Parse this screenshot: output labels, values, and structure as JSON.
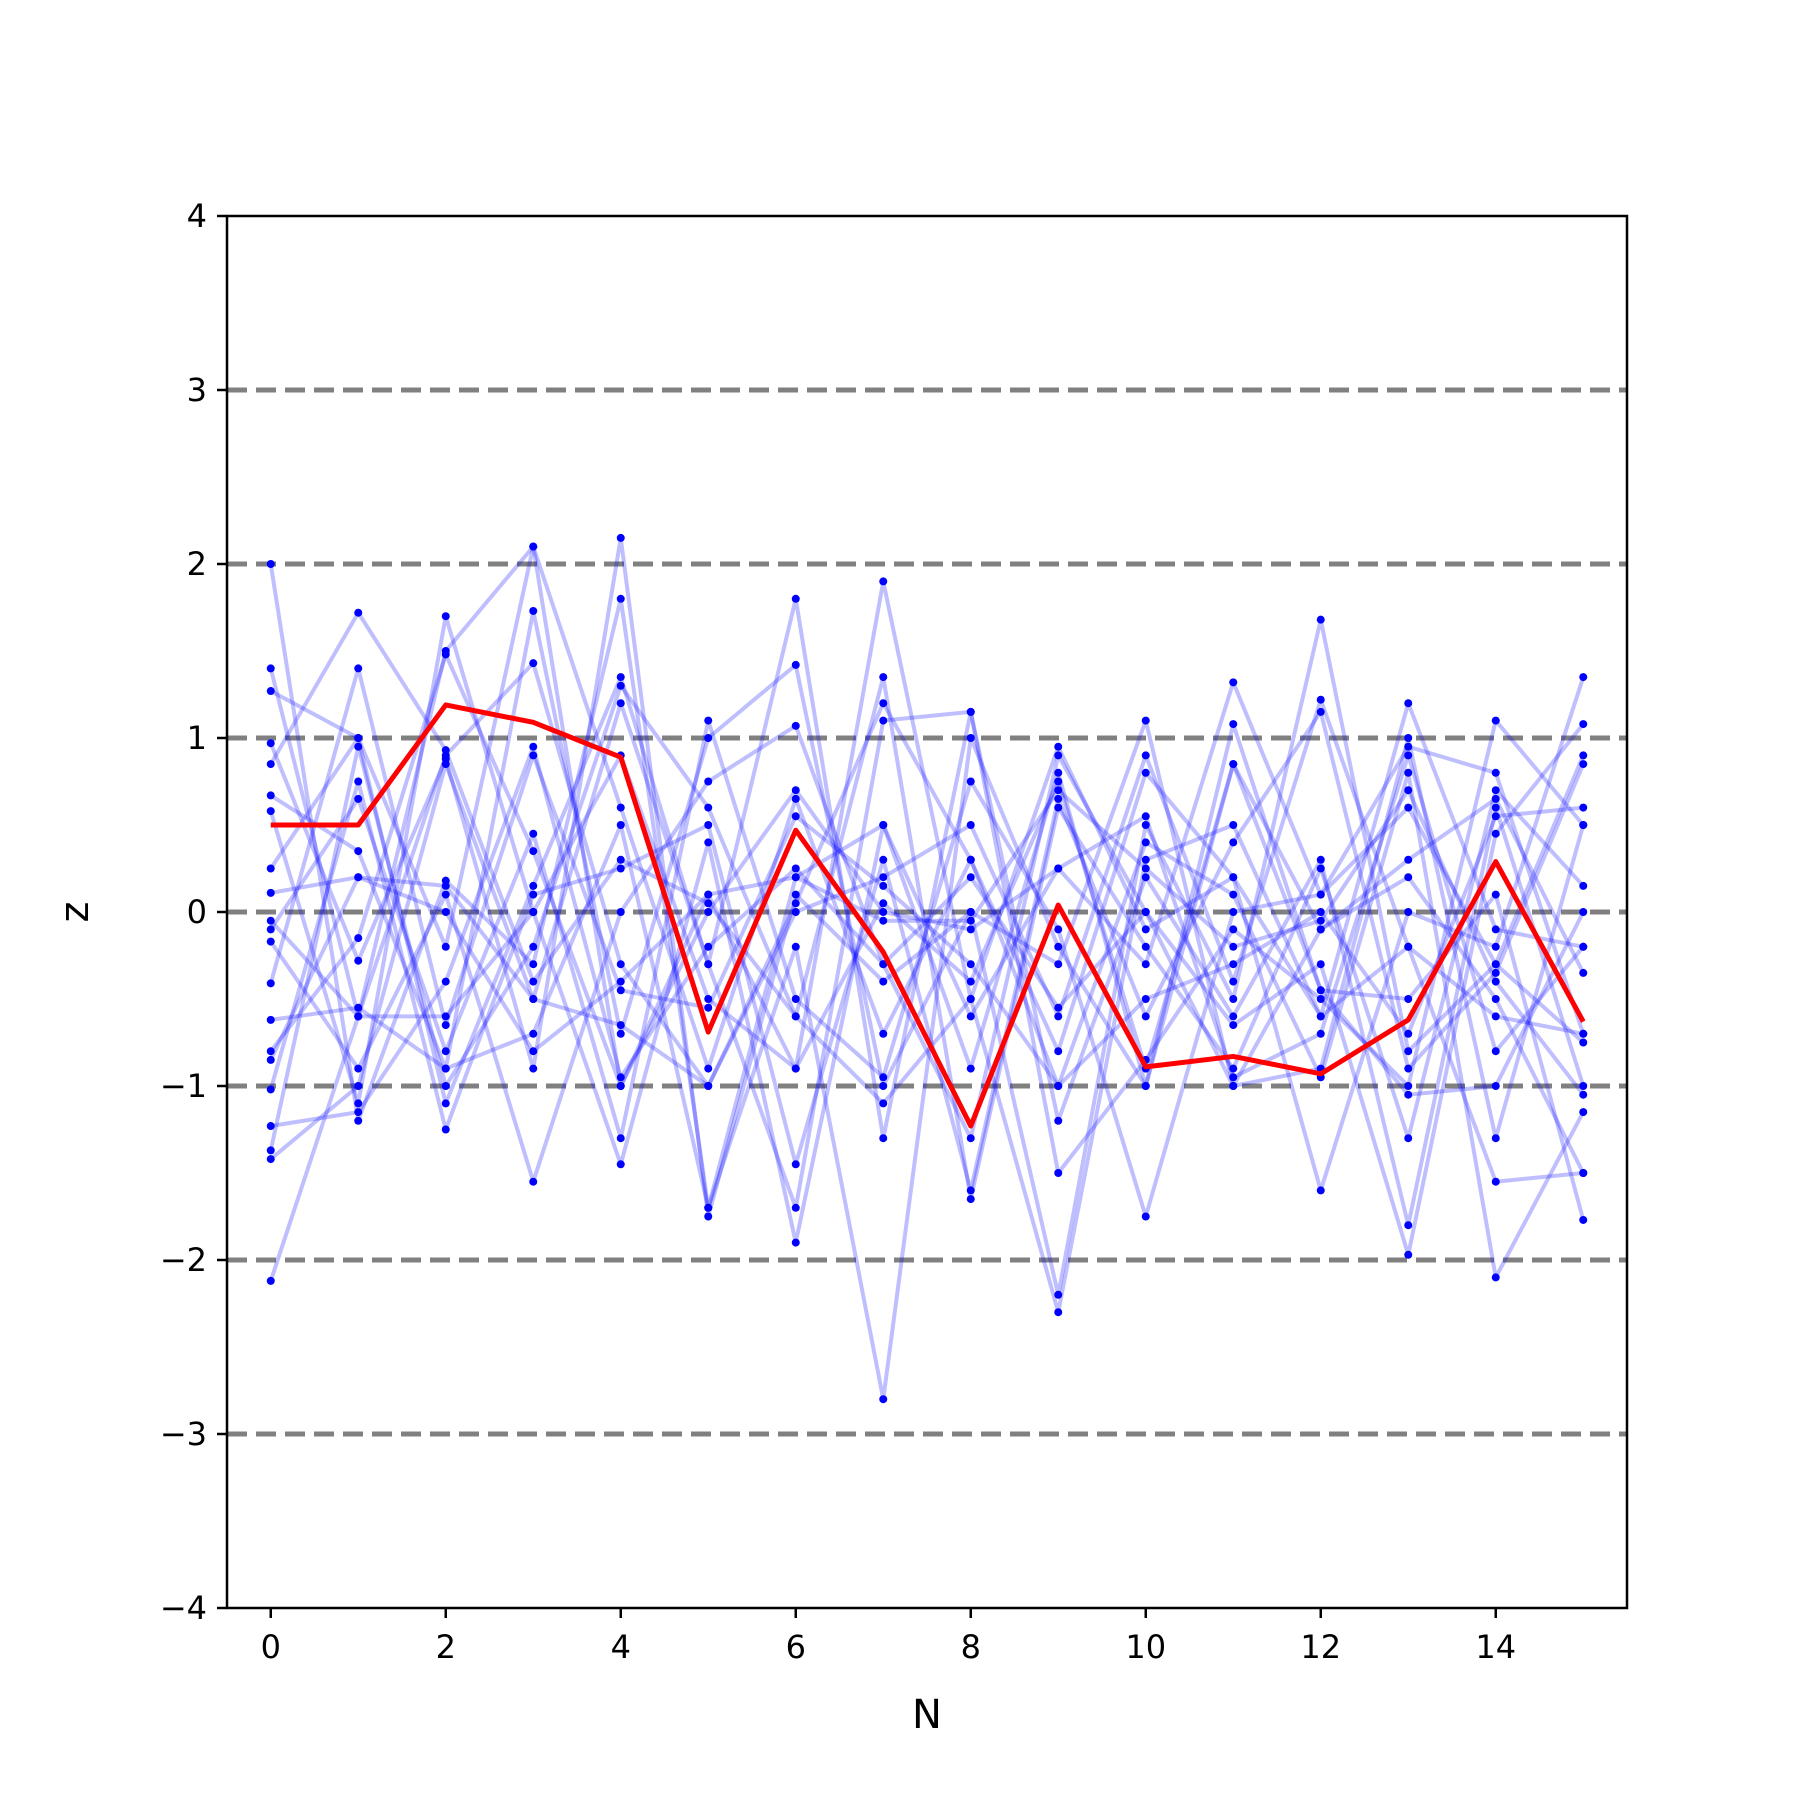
{
  "chart_data": {
    "type": "line",
    "title": "",
    "xlabel": "N",
    "ylabel": "z",
    "xlim": [
      -0.5,
      15.5
    ],
    "ylim": [
      -4,
      4
    ],
    "x": [
      0,
      1,
      2,
      3,
      4,
      5,
      6,
      7,
      8,
      9,
      10,
      11,
      12,
      13,
      14,
      15
    ],
    "xticks": [
      0,
      2,
      4,
      6,
      8,
      10,
      12,
      14
    ],
    "xtick_labels": [
      "0",
      "2",
      "4",
      "6",
      "8",
      "10",
      "12",
      "14"
    ],
    "yticks": [
      -4,
      -3,
      -2,
      -1,
      0,
      1,
      2,
      3,
      4
    ],
    "ytick_labels": [
      "−4",
      "−3",
      "−2",
      "−1",
      "0",
      "1",
      "2",
      "3",
      "4"
    ],
    "reference_lines": [
      -3,
      -2,
      -1,
      0,
      1,
      2,
      3
    ],
    "grid": false,
    "colors": {
      "highlight": "#ff0000",
      "background_series": "#0000ff",
      "reference": "#808080"
    },
    "highlight_series": {
      "values": [
        0.5,
        0.5,
        1.19,
        1.09,
        0.89,
        -0.69,
        0.47,
        -0.23,
        -1.23,
        0.04,
        -0.89,
        -0.83,
        -0.93,
        -0.62,
        0.29,
        -0.63
      ]
    },
    "series": [
      {
        "values": [
          2.0,
          -1.2,
          0.18,
          -0.3,
          1.8,
          -1.7,
          0.2,
          0.5,
          -0.9,
          0.8,
          -1.0,
          0.85,
          -0.1,
          0.2,
          -0.5,
          -1.5
        ]
      },
      {
        "values": [
          1.4,
          -0.6,
          1.5,
          2.1,
          -1.0,
          0.1,
          -0.9,
          1.9,
          -0.5,
          -2.3,
          0.3,
          0.5,
          -0.6,
          1.2,
          -0.1,
          -0.2
        ]
      },
      {
        "values": [
          1.27,
          1.0,
          -1.1,
          0.15,
          1.35,
          -0.3,
          1.8,
          -1.3,
          1.15,
          -1.2,
          0.2,
          -0.6,
          0.3,
          -1.8,
          0.6,
          -1.0
        ]
      },
      {
        "values": [
          0.97,
          -0.28,
          0.88,
          -0.9,
          2.15,
          -1.75,
          0.1,
          -0.4,
          0.0,
          -2.2,
          0.5,
          -0.5,
          1.68,
          -0.8,
          -0.3,
          0.9
        ]
      },
      {
        "values": [
          0.85,
          1.72,
          0.93,
          -0.4,
          0.3,
          0.05,
          -0.6,
          1.35,
          -1.65,
          0.6,
          -0.2,
          -0.9,
          0.25,
          -1.3,
          0.7,
          0.15
        ]
      },
      {
        "values": [
          0.67,
          0.35,
          -0.9,
          1.73,
          -0.7,
          1.0,
          1.42,
          -1.0,
          0.0,
          -0.3,
          1.1,
          -1.0,
          -0.9,
          1.0,
          -1.3,
          0.5
        ]
      },
      {
        "values": [
          0.58,
          -1.1,
          1.7,
          0.0,
          -1.45,
          0.4,
          -1.9,
          0.5,
          -0.6,
          0.25,
          -0.3,
          1.32,
          0.1,
          0.95,
          0.8,
          -0.7
        ]
      },
      {
        "values": [
          0.25,
          1.0,
          -0.2,
          2.1,
          0.6,
          -0.9,
          0.65,
          -0.7,
          0.3,
          -0.8,
          0.8,
          0.2,
          -1.6,
          0.0,
          -0.2,
          1.35
        ]
      },
      {
        "values": [
          0.11,
          0.2,
          0.15,
          -0.5,
          1.2,
          -0.3,
          -1.7,
          1.1,
          1.15,
          -1.5,
          -0.85,
          -0.1,
          -0.5,
          -1.0,
          1.1,
          0.5
        ]
      },
      {
        "values": [
          -0.05,
          -0.6,
          0.9,
          1.43,
          -0.3,
          -1.0,
          0.0,
          0.2,
          0.5,
          -0.6,
          0.9,
          -0.4,
          1.22,
          -0.2,
          -0.6,
          -0.7
        ]
      },
      {
        "values": [
          -0.1,
          0.65,
          -0.8,
          0.45,
          -1.3,
          1.1,
          -0.5,
          -0.95,
          0.75,
          -0.1,
          -1.75,
          0.0,
          0.1,
          0.6,
          -0.3,
          -0.75
        ]
      },
      {
        "values": [
          -0.17,
          -0.9,
          0.1,
          -1.55,
          0.0,
          0.75,
          1.07,
          -0.3,
          -1.3,
          0.9,
          0.0,
          -0.65,
          -0.3,
          -1.97,
          0.45,
          1.08
        ]
      },
      {
        "values": [
          -0.41,
          1.4,
          -0.65,
          0.9,
          -0.45,
          -0.55,
          0.55,
          0.15,
          -0.3,
          -1.0,
          0.4,
          0.1,
          -0.95,
          0.8,
          -2.1,
          -1.15
        ]
      },
      {
        "values": [
          -0.62,
          -0.55,
          -0.9,
          -0.7,
          0.5,
          -1.7,
          -0.2,
          -2.8,
          1.0,
          -0.2,
          -1.0,
          1.08,
          -0.45,
          -0.5,
          0.1,
          -1.77
        ]
      },
      {
        "values": [
          -0.8,
          -0.15,
          1.48,
          0.35,
          -1.0,
          0.0,
          0.7,
          0.0,
          -0.1,
          0.25,
          0.55,
          -0.95,
          -0.7,
          0.9,
          -0.8,
          -0.2
        ]
      },
      {
        "values": [
          -1.02,
          0.75,
          -1.25,
          0.1,
          0.25,
          0.5,
          -1.45,
          0.3,
          -1.6,
          0.65,
          -0.6,
          0.4,
          1.15,
          -0.9,
          -0.35,
          0.85
        ]
      },
      {
        "values": [
          -1.23,
          -1.15,
          -0.4,
          0.95,
          -0.95,
          -0.2,
          0.25,
          -0.3,
          0.2,
          -0.55,
          0.0,
          -1.0,
          -0.1,
          0.3,
          0.65,
          -0.35
        ]
      },
      {
        "values": [
          -1.37,
          0.95,
          -1.0,
          -0.2,
          1.3,
          0.6,
          -0.6,
          -1.1,
          -0.5,
          0.95,
          -0.1,
          0.2,
          -0.6,
          -0.2,
          -1.55,
          -1.5
        ]
      },
      {
        "values": [
          -1.42,
          -1.0,
          0.85,
          -0.5,
          -0.65,
          -1.0,
          0.05,
          1.2,
          0.3,
          -1.0,
          -0.5,
          -0.3,
          0.0,
          -0.7,
          0.55,
          0.6
        ]
      },
      {
        "values": [
          -2.12,
          -0.6,
          -0.6,
          0.0,
          0.9,
          -0.5,
          -0.9,
          0.05,
          -0.4,
          0.75,
          -0.9,
          0.85,
          -0.45,
          -1.05,
          -1.0,
          0.0
        ]
      },
      {
        "values": [
          -0.85,
          0.2,
          0.0,
          -0.8,
          -0.4,
          0.1,
          0.2,
          -0.05,
          -0.05,
          0.7,
          0.25,
          -0.2,
          -0.05,
          0.7,
          -0.4,
          -1.05
        ]
      }
    ]
  }
}
